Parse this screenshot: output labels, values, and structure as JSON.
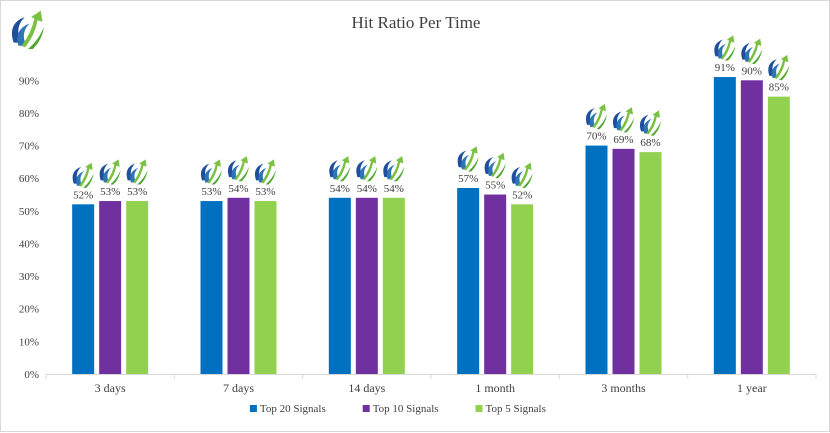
{
  "chart_data": {
    "type": "bar",
    "title": "Hit Ratio Per Time",
    "xlabel": "",
    "ylabel": "",
    "ylim": [
      0,
      95
    ],
    "yticks": [
      "0%",
      "10%",
      "20%",
      "30%",
      "40%",
      "50%",
      "60%",
      "70%",
      "80%",
      "90%"
    ],
    "categories": [
      "3 days",
      "7 days",
      "14 days",
      "1 month",
      "3 months",
      "1 year"
    ],
    "series": [
      {
        "name": "Top 20 Signals",
        "color": "#0070c0",
        "values": [
          52,
          53,
          54,
          57,
          70,
          91
        ],
        "labels": [
          "52%",
          "53%",
          "54%",
          "57%",
          "70%",
          "91%"
        ]
      },
      {
        "name": "Top 10 Signals",
        "color": "#7030a0",
        "values": [
          53,
          54,
          54,
          55,
          69,
          90
        ],
        "labels": [
          "53%",
          "54%",
          "54%",
          "55%",
          "69%",
          "90%"
        ]
      },
      {
        "name": "Top 5 Signals",
        "color": "#92d050",
        "values": [
          53,
          53,
          54,
          52,
          68,
          85
        ],
        "labels": [
          "53%",
          "53%",
          "54%",
          "52%",
          "68%",
          "85%"
        ]
      }
    ],
    "grid": false,
    "legend_position": "bottom",
    "logo_icon": "growth-arrow-logo-icon"
  }
}
